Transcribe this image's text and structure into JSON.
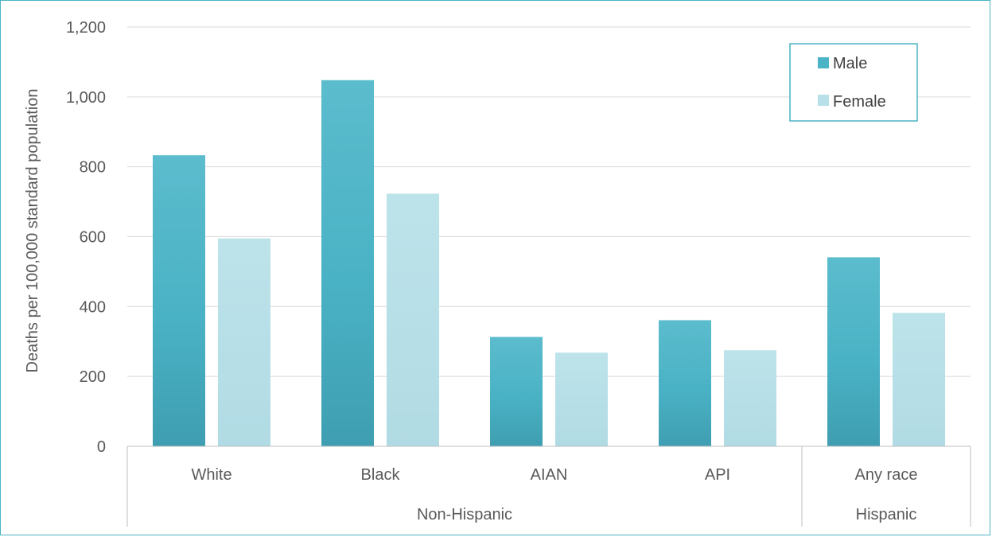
{
  "chart_data": {
    "type": "bar",
    "categories": [
      "White",
      "Black",
      "AIAN",
      "API",
      "Any race"
    ],
    "groups": [
      {
        "label": "Non-Hispanic",
        "categories": [
          "White",
          "Black",
          "AIAN",
          "API"
        ]
      },
      {
        "label": "Hispanic",
        "categories": [
          "Any race"
        ]
      }
    ],
    "series": [
      {
        "name": "Male",
        "color": "#4bb3c6",
        "values": [
          833,
          1048,
          313,
          361,
          541
        ]
      },
      {
        "name": "Female",
        "color": "#b8e0e8",
        "values": [
          595,
          723,
          268,
          275,
          382
        ]
      }
    ],
    "ylabel": "Deaths per 100,000 standard population",
    "xlabel": "",
    "ylim": [
      0,
      1200
    ],
    "yticks": [
      0,
      200,
      400,
      600,
      800,
      1000,
      1200
    ],
    "ytick_labels": [
      "0",
      "200",
      "400",
      "600",
      "800",
      "1,000",
      "1,200"
    ],
    "grid": true,
    "legend": "top-right"
  }
}
